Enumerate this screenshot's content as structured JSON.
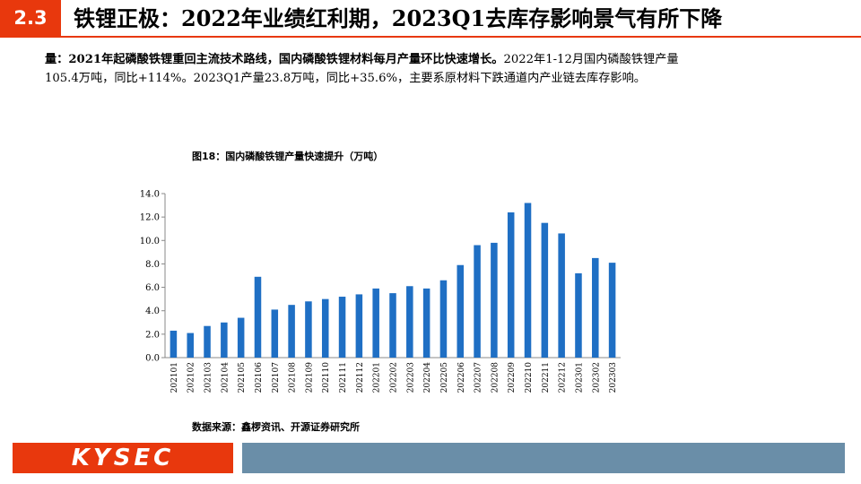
{
  "header": {
    "section_number": "2.3",
    "title": "铁锂正极：2022年业绩红利期，2023Q1去库存影响景气有所下降"
  },
  "summary": {
    "lead_bold": "量：2021年起磷酸铁锂重回主流技术路线，国内磷酸铁锂材料每月产量环比快速增长。",
    "text_line1_rest": "2022年1-12月国内磷酸铁锂产量",
    "text_line2": "105.4万吨，同比+114%。2023Q1产量23.8万吨，同比+35.6%，主要系原材料下跌通道内产业链去库存影响。"
  },
  "figure": {
    "title": "图18：国内磷酸铁锂产量快速提升（万吨）",
    "source": "数据来源：鑫椤资讯、开源证券研究所"
  },
  "footer": {
    "brand": "KYSEC"
  },
  "colors": {
    "accent": "#e8380d",
    "bar": "#1f6fc4",
    "footer_band": "#6a8ea8"
  },
  "chart_data": {
    "type": "bar",
    "title": "图18：国内磷酸铁锂产量快速提升（万吨）",
    "xlabel": "",
    "ylabel": "",
    "ylim": [
      0,
      14
    ],
    "yticks": [
      "0.0",
      "2.0",
      "4.0",
      "6.0",
      "8.0",
      "10.0",
      "12.0",
      "14.0"
    ],
    "grid": false,
    "categories": [
      "202101",
      "202102",
      "202103",
      "202104",
      "202105",
      "202106",
      "202107",
      "202108",
      "202109",
      "202110",
      "202111",
      "202112",
      "202201",
      "202202",
      "202203",
      "202204",
      "202205",
      "202206",
      "202207",
      "202208",
      "202209",
      "202210",
      "202211",
      "202212",
      "202301",
      "202302",
      "202303"
    ],
    "values": [
      2.3,
      2.1,
      2.7,
      3.0,
      3.4,
      6.9,
      4.1,
      4.5,
      4.8,
      5.0,
      5.2,
      5.4,
      5.9,
      5.5,
      6.1,
      5.9,
      6.6,
      7.9,
      9.6,
      9.8,
      12.4,
      13.2,
      11.5,
      10.6,
      7.2,
      8.5,
      8.1
    ]
  }
}
